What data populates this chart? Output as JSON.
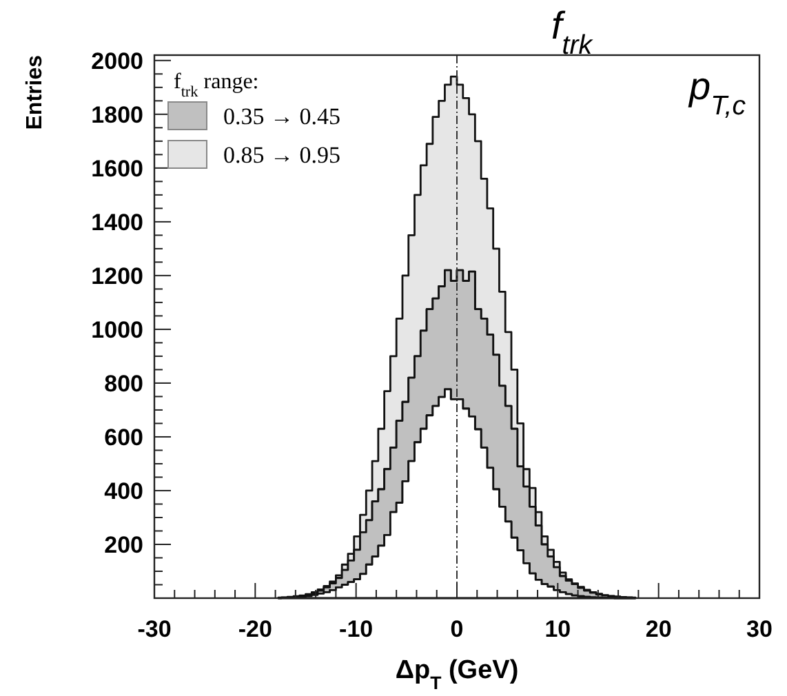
{
  "chart_data": {
    "type": "area",
    "stacked": true,
    "xlabel": "Δp$_{T}$ (GeV)",
    "ylabel": "Entries",
    "legend_title": "f$_{trk}$ range:",
    "legend": "top left",
    "grid": false,
    "annotations": [
      "f$_{trk}$",
      "p$_{T,c}$"
    ],
    "x": [
      -17.7,
      -17.1,
      -16.5,
      -15.9,
      -15.3,
      -14.7,
      -14.1,
      -13.5,
      -12.9,
      -12.3,
      -11.7,
      -11.1,
      -10.5,
      -9.9,
      -9.3,
      -8.7,
      -8.1,
      -7.5,
      -6.9,
      -6.3,
      -5.7,
      -5.1,
      -4.5,
      -3.9,
      -3.3,
      -2.7,
      -2.1,
      -1.5,
      -0.9,
      -0.3,
      0.3,
      0.9,
      1.5,
      2.1,
      2.7,
      3.3,
      3.9,
      4.5,
      5.1,
      5.7,
      6.3,
      6.9,
      7.5,
      8.1,
      8.7,
      9.3,
      9.9,
      10.5,
      11.1,
      11.7,
      12.3,
      12.9,
      13.5,
      14.1,
      14.7,
      15.3,
      15.9,
      16.5,
      17.1,
      17.7
    ],
    "series": [
      {
        "color": "#ffffff",
        "values": [
          0,
          1,
          2,
          3,
          5,
          8,
          12,
          17,
          22,
          30,
          40,
          50,
          60,
          70,
          90,
          125,
          155,
          195,
          235,
          320,
          355,
          435,
          510,
          580,
          630,
          680,
          715,
          748,
          777,
          740,
          740,
          705,
          676,
          628,
          560,
          485,
          405,
          340,
          285,
          225,
          178,
          130,
          92,
          68,
          52,
          43,
          30,
          22,
          15,
          10,
          7,
          5,
          3,
          2,
          1,
          1,
          0,
          0,
          0,
          0
        ]
      },
      {
        "name": "0.35 → 0.45",
        "color": "#c0c0c0",
        "values": [
          1,
          1,
          1,
          2,
          3,
          4,
          6,
          11,
          18,
          25,
          35,
          55,
          80,
          110,
          155,
          165,
          205,
          210,
          245,
          240,
          305,
          295,
          310,
          320,
          365,
          395,
          400,
          412,
          443,
          440,
          480,
          475,
          539,
          447,
          480,
          495,
          500,
          450,
          430,
          405,
          312,
          285,
          248,
          202,
          148,
          112,
          85,
          60,
          50,
          42,
          31,
          23,
          17,
          12,
          9,
          6,
          5,
          3,
          2,
          1
        ]
      },
      {
        "name": "0.85 → 0.95",
        "color": "#e6e6e6",
        "values": [
          1,
          1,
          2,
          2,
          2,
          3,
          4,
          4,
          5,
          7,
          10,
          20,
          25,
          50,
          65,
          110,
          150,
          225,
          290,
          340,
          380,
          470,
          530,
          600,
          615,
          615,
          675,
          690,
          690,
          760,
          690,
          680,
          585,
          625,
          520,
          470,
          395,
          350,
          275,
          220,
          160,
          65,
          70,
          50,
          30,
          25,
          20,
          13,
          5,
          3,
          4,
          3,
          2,
          2,
          1,
          1,
          1,
          1,
          1,
          1
        ]
      }
    ],
    "xlim": [
      -30,
      30
    ],
    "xticks": [
      -30,
      {
        "value": -28,
        "label": null
      },
      {
        "value": -26,
        "label": null
      },
      {
        "value": -24,
        "label": null
      },
      {
        "value": -22,
        "label": null
      },
      -20,
      {
        "value": -18,
        "label": null
      },
      {
        "value": -16,
        "label": null
      },
      {
        "value": -14,
        "label": null
      },
      {
        "value": -12,
        "label": null
      },
      -10,
      {
        "value": -8,
        "label": null
      },
      {
        "value": -6,
        "label": null
      },
      {
        "value": -4,
        "label": null
      },
      {
        "value": -2,
        "label": null
      },
      0,
      {
        "value": 2,
        "label": null
      },
      {
        "value": 4,
        "label": null
      },
      {
        "value": 6,
        "label": null
      },
      {
        "value": 8,
        "label": null
      },
      10,
      {
        "value": 12,
        "label": null
      },
      {
        "value": 14,
        "label": null
      },
      {
        "value": 16,
        "label": null
      },
      {
        "value": 18,
        "label": null
      },
      20,
      {
        "value": 22,
        "label": null
      },
      {
        "value": 24,
        "label": null
      },
      {
        "value": 26,
        "label": null
      },
      {
        "value": 28,
        "label": null
      },
      30
    ],
    "ylim": [
      0,
      2020
    ],
    "yticks": [
      {
        "value": 50,
        "label": null
      },
      {
        "value": 100,
        "label": null
      },
      {
        "value": 150,
        "label": null
      },
      200,
      {
        "value": 250,
        "label": null
      },
      {
        "value": 300,
        "label": null
      },
      {
        "value": 350,
        "label": null
      },
      400,
      {
        "value": 450,
        "label": null
      },
      {
        "value": 500,
        "label": null
      },
      {
        "value": 550,
        "label": null
      },
      600,
      {
        "value": 650,
        "label": null
      },
      {
        "value": 700,
        "label": null
      },
      {
        "value": 750,
        "label": null
      },
      800,
      {
        "value": 850,
        "label": null
      },
      {
        "value": 900,
        "label": null
      },
      {
        "value": 950,
        "label": null
      },
      1000,
      {
        "value": 1050,
        "label": null
      },
      {
        "value": 1100,
        "label": null
      },
      {
        "value": 1150,
        "label": null
      },
      1200,
      {
        "value": 1250,
        "label": null
      },
      {
        "value": 1300,
        "label": null
      },
      {
        "value": 1350,
        "label": null
      },
      1400,
      {
        "value": 1450,
        "label": null
      },
      {
        "value": 1500,
        "label": null
      },
      {
        "value": 1550,
        "label": null
      },
      1600,
      {
        "value": 1650,
        "label": null
      },
      {
        "value": 1700,
        "label": null
      },
      {
        "value": 1750,
        "label": null
      },
      1800,
      {
        "value": 1850,
        "label": null
      },
      {
        "value": 1900,
        "label": null
      },
      {
        "value": 1950,
        "label": null
      },
      2000
    ],
    "ref_lines": [
      {
        "axis": "x",
        "value": 0,
        "color": "#333333",
        "line_style": "dashed"
      }
    ]
  }
}
